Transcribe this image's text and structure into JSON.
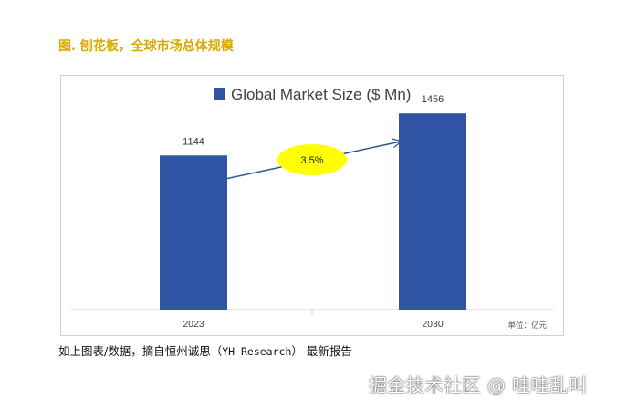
{
  "figure_title": "图. 刨花板，全球市场总体规模",
  "caption": {
    "prefix": "如上图表/数据，摘自恒州诚思（",
    "source": "YH Research",
    "suffix": "） 最新报告"
  },
  "watermark": "掘金技术社区 @ 哇哇乱叫",
  "chart_data": {
    "type": "bar",
    "title": "",
    "categories": [
      "2023",
      "2030"
    ],
    "series": [
      {
        "name": "Global Market Size ($ Mn)",
        "values": [
          1144,
          1456
        ]
      }
    ],
    "data_labels": [
      "1144",
      "1456"
    ],
    "growth_annotation": "3.5%",
    "unit_note": "单位：亿元",
    "ylim": [
      0,
      1600
    ],
    "grid": false,
    "legend_position": "top",
    "colors": {
      "bar": "#2F54A4",
      "arrow": "#2F5597",
      "callout_fill": "#FFFF00",
      "title": "#D8A800"
    }
  }
}
